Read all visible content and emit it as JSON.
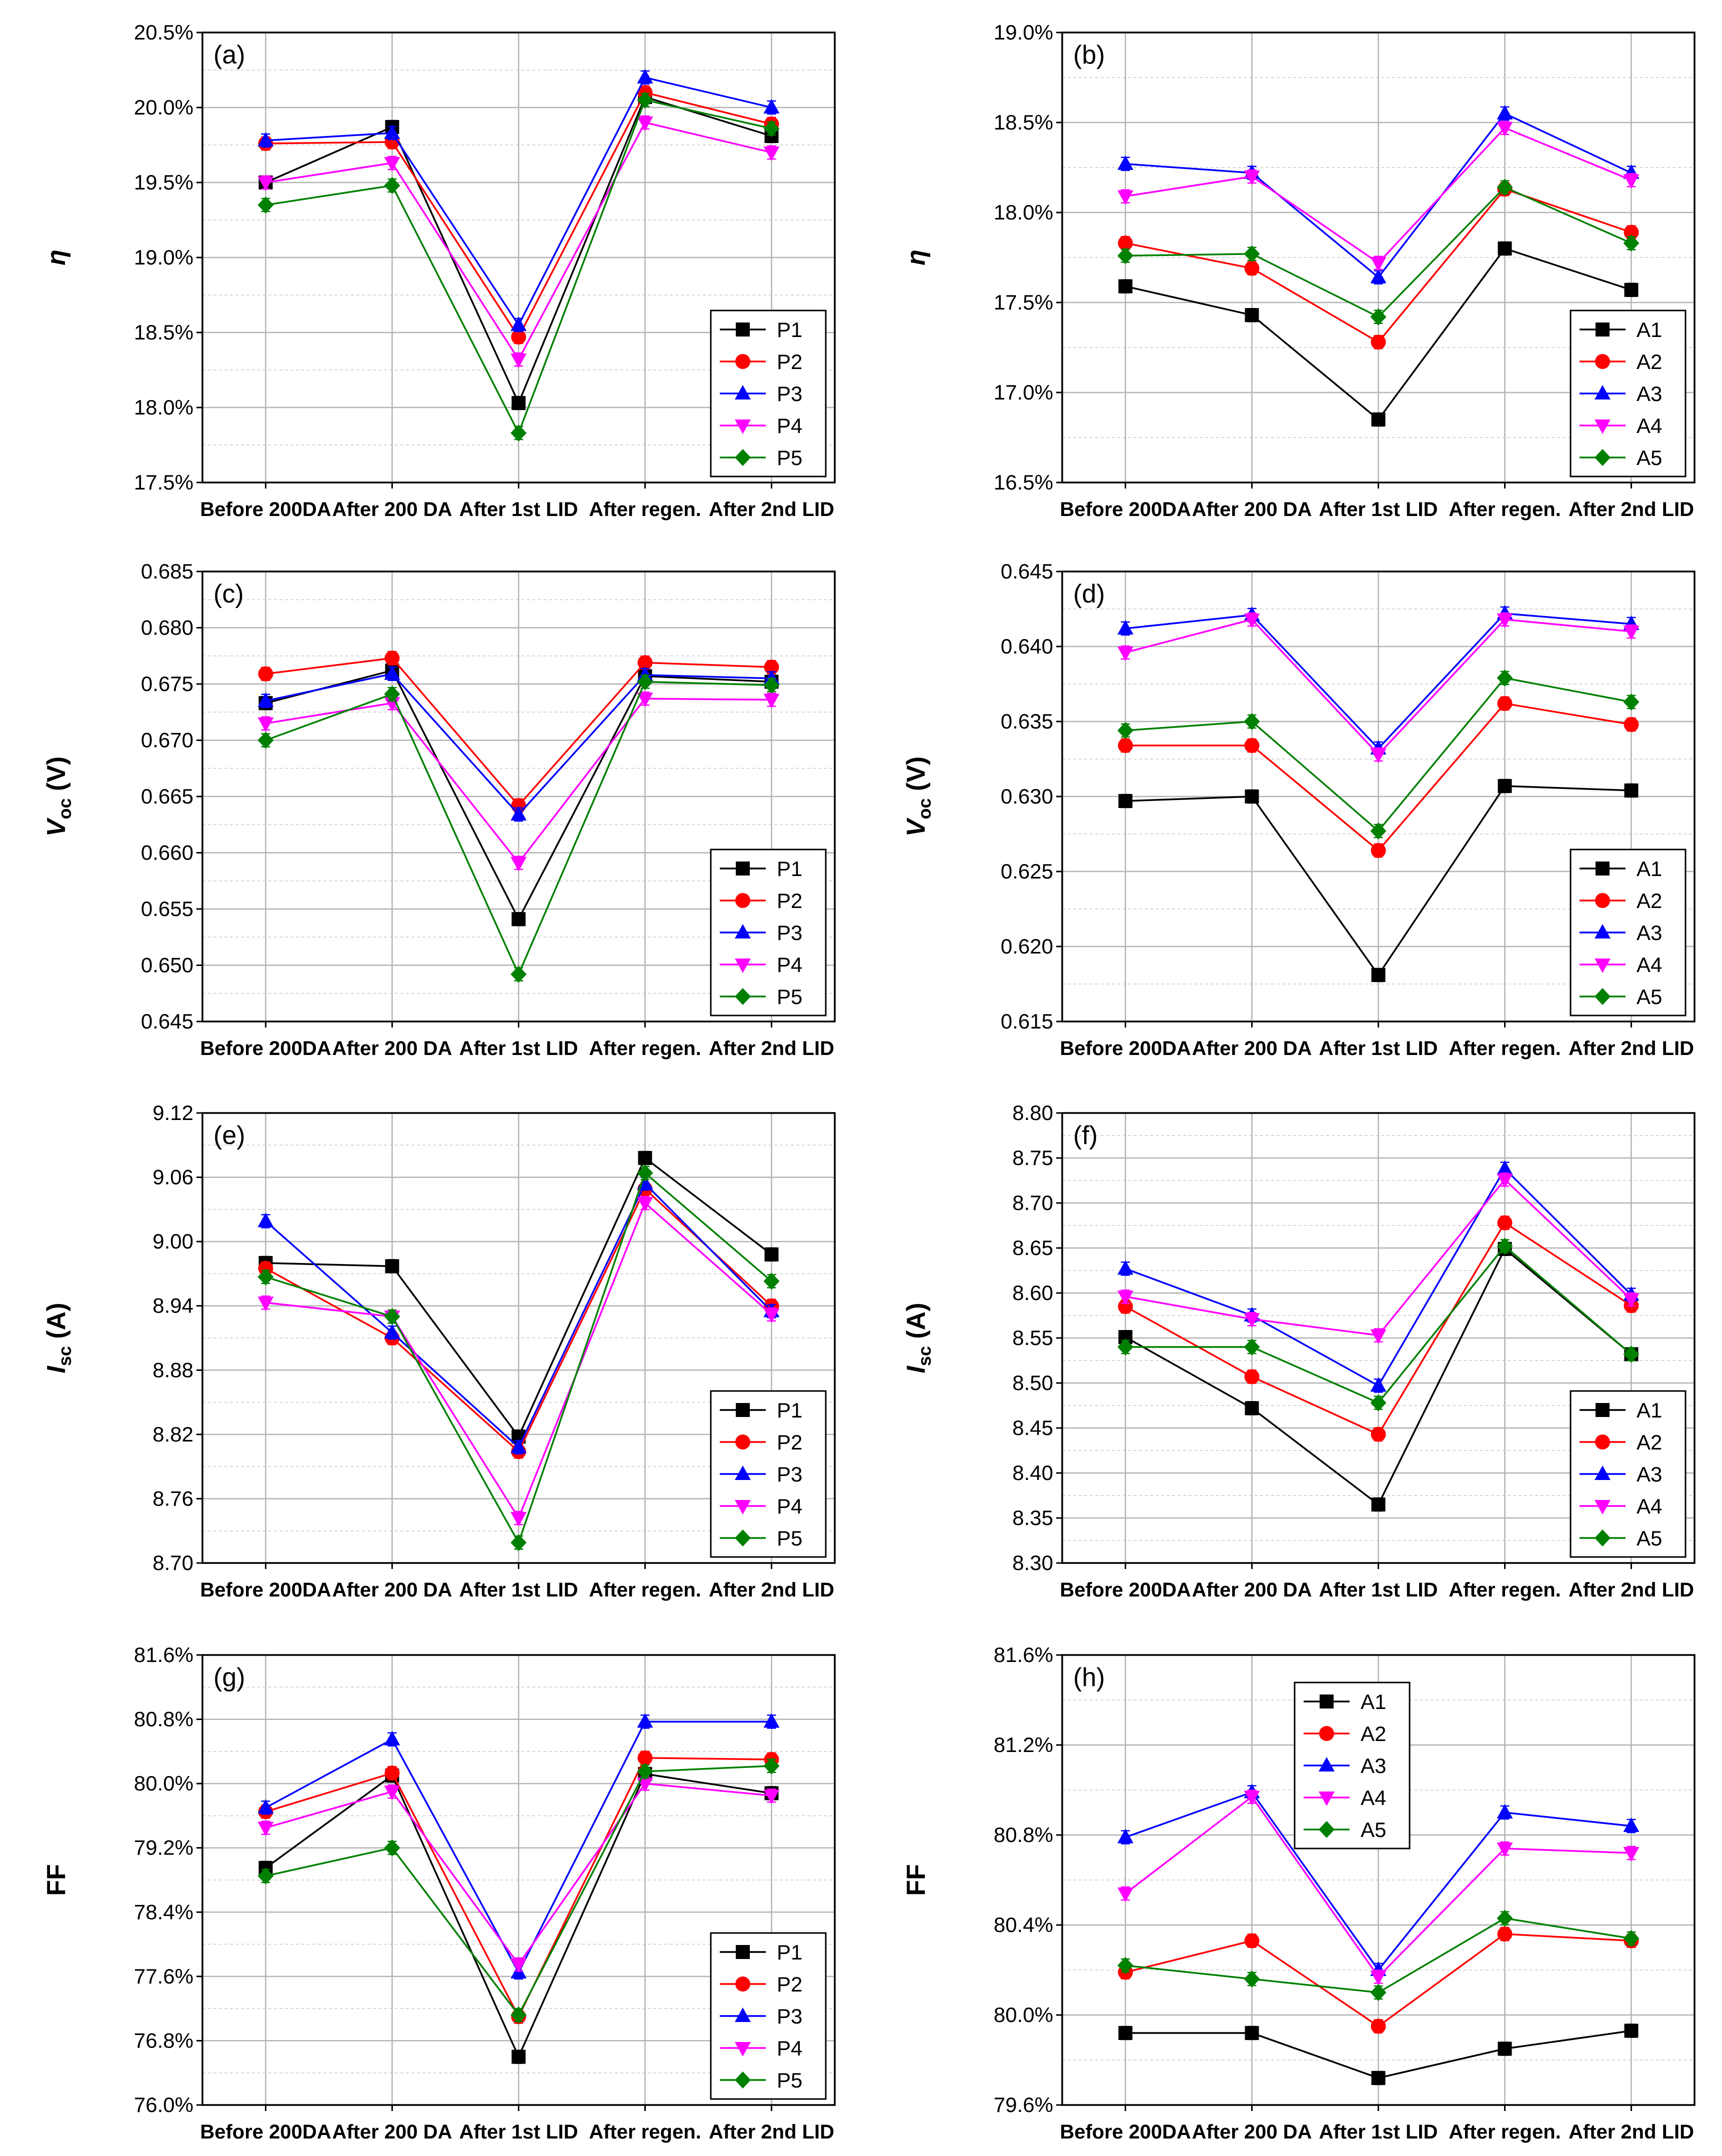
{
  "chart_data": [
    {
      "type": "line",
      "panel_label": "(a)",
      "ylabel_main": "η",
      "ylabel_sub": "",
      "categories": [
        "Before 200DA",
        "After 200 DA",
        "After 1st LID",
        "After regen.",
        "After 2nd LID"
      ],
      "ylim": [
        17.5,
        20.5
      ],
      "yticks": [
        "17.5%",
        "18.0%",
        "18.5%",
        "19.0%",
        "19.5%",
        "20.0%",
        "20.5%"
      ],
      "legend_position": "bottom-right",
      "series": [
        {
          "name": "P1",
          "color": "#000000",
          "marker": "square",
          "values": [
            19.5,
            19.87,
            18.03,
            20.07,
            19.81
          ]
        },
        {
          "name": "P2",
          "color": "#ff0000",
          "marker": "circle",
          "values": [
            19.76,
            19.77,
            18.47,
            20.1,
            19.89
          ]
        },
        {
          "name": "P3",
          "color": "#0000ff",
          "marker": "triangle-up",
          "values": [
            19.78,
            19.83,
            18.55,
            20.2,
            20.0
          ]
        },
        {
          "name": "P4",
          "color": "#ff00ff",
          "marker": "triangle-down",
          "values": [
            19.5,
            19.63,
            18.32,
            19.9,
            19.7
          ]
        },
        {
          "name": "P5",
          "color": "#008000",
          "marker": "diamond",
          "values": [
            19.35,
            19.48,
            17.83,
            20.05,
            19.86
          ]
        }
      ]
    },
    {
      "type": "line",
      "panel_label": "(b)",
      "ylabel_main": "η",
      "ylabel_sub": "",
      "categories": [
        "Before 200DA",
        "After 200 DA",
        "After 1st LID",
        "After regen.",
        "After 2nd LID"
      ],
      "ylim": [
        16.5,
        19.0
      ],
      "yticks": [
        "16.5%",
        "17.0%",
        "17.5%",
        "18.0%",
        "18.5%",
        "19.0%"
      ],
      "legend_position": "bottom-right",
      "series": [
        {
          "name": "A1",
          "color": "#000000",
          "marker": "square",
          "values": [
            17.59,
            17.43,
            16.85,
            17.8,
            17.57
          ]
        },
        {
          "name": "A2",
          "color": "#ff0000",
          "marker": "circle",
          "values": [
            17.83,
            17.69,
            17.28,
            18.13,
            17.89
          ]
        },
        {
          "name": "A3",
          "color": "#0000ff",
          "marker": "triangle-up",
          "values": [
            18.27,
            18.22,
            17.64,
            18.55,
            18.22
          ]
        },
        {
          "name": "A4",
          "color": "#ff00ff",
          "marker": "triangle-down",
          "values": [
            18.09,
            18.2,
            17.72,
            18.47,
            18.18
          ]
        },
        {
          "name": "A5",
          "color": "#008000",
          "marker": "diamond",
          "values": [
            17.76,
            17.77,
            17.42,
            18.14,
            17.83
          ]
        }
      ]
    },
    {
      "type": "line",
      "panel_label": "(c)",
      "ylabel_main": "V",
      "ylabel_sub": "oc",
      "ylabel_unit": " (V)",
      "categories": [
        "Before 200DA",
        "After 200 DA",
        "After 1st LID",
        "After regen.",
        "After 2nd LID"
      ],
      "ylim": [
        0.645,
        0.685
      ],
      "yticks": [
        "0.645",
        "0.650",
        "0.655",
        "0.660",
        "0.665",
        "0.670",
        "0.675",
        "0.680",
        "0.685"
      ],
      "legend_position": "bottom-right",
      "series": [
        {
          "name": "P1",
          "color": "#000000",
          "marker": "square",
          "values": [
            0.6733,
            0.6762,
            0.6541,
            0.6757,
            0.6752
          ]
        },
        {
          "name": "P2",
          "color": "#ff0000",
          "marker": "circle",
          "values": [
            0.6759,
            0.6773,
            0.6642,
            0.6769,
            0.6765
          ]
        },
        {
          "name": "P3",
          "color": "#0000ff",
          "marker": "triangle-up",
          "values": [
            0.6735,
            0.6759,
            0.6634,
            0.6758,
            0.6755
          ]
        },
        {
          "name": "P4",
          "color": "#ff00ff",
          "marker": "triangle-down",
          "values": [
            0.6715,
            0.6733,
            0.6591,
            0.6737,
            0.6736
          ]
        },
        {
          "name": "P5",
          "color": "#008000",
          "marker": "diamond",
          "values": [
            0.67,
            0.6741,
            0.6492,
            0.6752,
            0.6749
          ]
        }
      ]
    },
    {
      "type": "line",
      "panel_label": "(d)",
      "ylabel_main": "V",
      "ylabel_sub": "oc",
      "ylabel_unit": " (V)",
      "categories": [
        "Before 200DA",
        "After 200 DA",
        "After 1st LID",
        "After regen.",
        "After 2nd LID"
      ],
      "ylim": [
        0.615,
        0.645
      ],
      "yticks": [
        "0.615",
        "0.620",
        "0.625",
        "0.630",
        "0.635",
        "0.640",
        "0.645"
      ],
      "legend_position": "bottom-right",
      "series": [
        {
          "name": "A1",
          "color": "#000000",
          "marker": "square",
          "values": [
            0.6297,
            0.63,
            0.6181,
            0.6307,
            0.6304
          ]
        },
        {
          "name": "A2",
          "color": "#ff0000",
          "marker": "circle",
          "values": [
            0.6334,
            0.6334,
            0.6264,
            0.6362,
            0.6348
          ]
        },
        {
          "name": "A3",
          "color": "#0000ff",
          "marker": "triangle-up",
          "values": [
            0.6412,
            0.6421,
            0.6332,
            0.6422,
            0.6415
          ]
        },
        {
          "name": "A4",
          "color": "#ff00ff",
          "marker": "triangle-down",
          "values": [
            0.6396,
            0.6418,
            0.6328,
            0.6418,
            0.641
          ]
        },
        {
          "name": "A5",
          "color": "#008000",
          "marker": "diamond",
          "values": [
            0.6344,
            0.635,
            0.6277,
            0.6379,
            0.6363
          ]
        }
      ]
    },
    {
      "type": "line",
      "panel_label": "(e)",
      "ylabel_main": "I",
      "ylabel_sub": "sc",
      "ylabel_unit": " (A)",
      "categories": [
        "Before 200DA",
        "After 200 DA",
        "After 1st LID",
        "After regen.",
        "After 2nd LID"
      ],
      "ylim": [
        8.7,
        9.12
      ],
      "yticks": [
        "8.70",
        "8.76",
        "8.82",
        "8.88",
        "8.94",
        "9.00",
        "9.06",
        "9.12"
      ],
      "legend_position": "bottom-right",
      "series": [
        {
          "name": "P1",
          "color": "#000000",
          "marker": "square",
          "values": [
            8.98,
            8.977,
            8.818,
            9.078,
            8.988
          ]
        },
        {
          "name": "P2",
          "color": "#ff0000",
          "marker": "circle",
          "values": [
            8.975,
            8.91,
            8.804,
            9.049,
            8.94
          ]
        },
        {
          "name": "P3",
          "color": "#0000ff",
          "marker": "triangle-up",
          "values": [
            9.019,
            8.915,
            8.808,
            9.054,
            8.935
          ]
        },
        {
          "name": "P4",
          "color": "#ff00ff",
          "marker": "triangle-down",
          "values": [
            8.943,
            8.93,
            8.742,
            9.036,
            8.932
          ]
        },
        {
          "name": "P5",
          "color": "#008000",
          "marker": "diamond",
          "values": [
            8.967,
            8.93,
            8.719,
            9.064,
            8.963
          ]
        }
      ]
    },
    {
      "type": "line",
      "panel_label": "(f)",
      "ylabel_main": "I",
      "ylabel_sub": "sc",
      "ylabel_unit": " (A)",
      "categories": [
        "Before 200DA",
        "After 200 DA",
        "After 1st LID",
        "After regen.",
        "After 2nd LID"
      ],
      "ylim": [
        8.3,
        8.8
      ],
      "yticks": [
        "8.30",
        "8.35",
        "8.40",
        "8.45",
        "8.50",
        "8.55",
        "8.60",
        "8.65",
        "8.70",
        "8.75",
        "8.80"
      ],
      "legend_position": "bottom-right",
      "series": [
        {
          "name": "A1",
          "color": "#000000",
          "marker": "square",
          "values": [
            8.551,
            8.472,
            8.365,
            8.649,
            8.532
          ]
        },
        {
          "name": "A2",
          "color": "#ff0000",
          "marker": "circle",
          "values": [
            8.585,
            8.507,
            8.443,
            8.678,
            8.586
          ]
        },
        {
          "name": "A3",
          "color": "#0000ff",
          "marker": "triangle-up",
          "values": [
            8.627,
            8.575,
            8.497,
            8.738,
            8.598
          ]
        },
        {
          "name": "A4",
          "color": "#ff00ff",
          "marker": "triangle-down",
          "values": [
            8.596,
            8.571,
            8.553,
            8.726,
            8.593
          ]
        },
        {
          "name": "A5",
          "color": "#008000",
          "marker": "diamond",
          "values": [
            8.54,
            8.54,
            8.478,
            8.652,
            8.532
          ]
        }
      ]
    },
    {
      "type": "line",
      "panel_label": "(g)",
      "ylabel_main": "FF",
      "ylabel_sub": "",
      "categories": [
        "Before 200DA",
        "After 200 DA",
        "After 1st LID",
        "After regen.",
        "After 2nd LID"
      ],
      "ylim": [
        76.0,
        81.6
      ],
      "yticks": [
        "76.0%",
        "76.8%",
        "77.6%",
        "78.4%",
        "79.2%",
        "80.0%",
        "80.8%",
        "81.6%"
      ],
      "legend_position": "bottom-right",
      "series": [
        {
          "name": "P1",
          "color": "#000000",
          "marker": "square",
          "values": [
            78.95,
            80.1,
            76.6,
            80.12,
            79.88
          ]
        },
        {
          "name": "P2",
          "color": "#ff0000",
          "marker": "circle",
          "values": [
            79.65,
            80.13,
            77.1,
            80.32,
            80.3
          ]
        },
        {
          "name": "P3",
          "color": "#0000ff",
          "marker": "triangle-up",
          "values": [
            79.7,
            80.55,
            77.65,
            80.77,
            80.77
          ]
        },
        {
          "name": "P4",
          "color": "#ff00ff",
          "marker": "triangle-down",
          "values": [
            79.45,
            79.9,
            77.75,
            80.0,
            79.85
          ]
        },
        {
          "name": "P5",
          "color": "#008000",
          "marker": "diamond",
          "values": [
            78.85,
            79.2,
            77.12,
            80.15,
            80.22
          ]
        }
      ]
    },
    {
      "type": "line",
      "panel_label": "(h)",
      "ylabel_main": "FF",
      "ylabel_sub": "",
      "categories": [
        "Before 200DA",
        "After 200 DA",
        "After 1st LID",
        "After regen.",
        "After 2nd LID"
      ],
      "ylim": [
        79.6,
        81.6
      ],
      "yticks": [
        "79.6%",
        "80.0%",
        "80.4%",
        "80.8%",
        "81.2%",
        "81.6%"
      ],
      "legend_position": "top-left",
      "series": [
        {
          "name": "A1",
          "color": "#000000",
          "marker": "square",
          "values": [
            79.92,
            79.92,
            79.72,
            79.85,
            79.93
          ]
        },
        {
          "name": "A2",
          "color": "#ff0000",
          "marker": "circle",
          "values": [
            80.19,
            80.33,
            79.95,
            80.36,
            80.33
          ]
        },
        {
          "name": "A3",
          "color": "#0000ff",
          "marker": "triangle-up",
          "values": [
            80.79,
            80.99,
            80.2,
            80.9,
            80.84
          ]
        },
        {
          "name": "A4",
          "color": "#ff00ff",
          "marker": "triangle-down",
          "values": [
            80.54,
            80.97,
            80.17,
            80.74,
            80.72
          ]
        },
        {
          "name": "A5",
          "color": "#008000",
          "marker": "diamond",
          "values": [
            80.22,
            80.16,
            80.1,
            80.43,
            80.34
          ]
        }
      ]
    }
  ]
}
